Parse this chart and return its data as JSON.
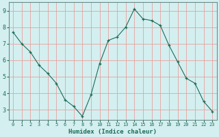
{
  "x": [
    0,
    1,
    2,
    3,
    4,
    5,
    6,
    7,
    8,
    9,
    10,
    11,
    12,
    13,
    14,
    15,
    16,
    17,
    18,
    19,
    20,
    21,
    22,
    23
  ],
  "y": [
    7.7,
    7.0,
    6.5,
    5.7,
    5.2,
    4.6,
    3.6,
    3.2,
    2.6,
    3.9,
    5.8,
    7.2,
    7.4,
    8.0,
    9.1,
    8.5,
    8.4,
    8.1,
    6.9,
    5.9,
    4.9,
    4.6,
    3.5,
    2.9
  ],
  "xlabel": "Humidex (Indice chaleur)",
  "ylim": [
    2.4,
    9.5
  ],
  "xlim": [
    -0.5,
    23.5
  ],
  "yticks": [
    3,
    4,
    5,
    6,
    7,
    8,
    9
  ],
  "xticks": [
    0,
    1,
    2,
    3,
    4,
    5,
    6,
    7,
    8,
    9,
    10,
    11,
    12,
    13,
    14,
    15,
    16,
    17,
    18,
    19,
    20,
    21,
    22,
    23
  ],
  "line_color": "#1a6b5a",
  "marker": "+",
  "bg_color": "#d4efef",
  "grid_color": "#e8a0a0",
  "axis_color": "#6a8a8a",
  "tick_label_color": "#1a6b5a",
  "xlabel_color": "#1a6b5a"
}
